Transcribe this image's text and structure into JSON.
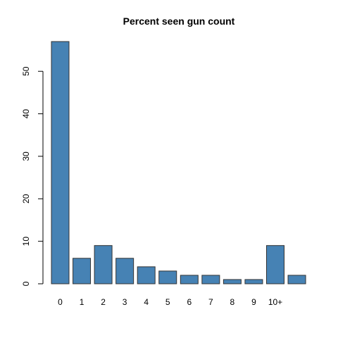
{
  "chart_data": {
    "type": "bar",
    "title": "Percent seen gun count",
    "xlabel": "",
    "ylabel": "",
    "categories": [
      "0",
      "1",
      "2",
      "3",
      "4",
      "5",
      "6",
      "7",
      "8",
      "9",
      "10+",
      ""
    ],
    "values": [
      57,
      6,
      9,
      6,
      4,
      3,
      2,
      2,
      1,
      1,
      9,
      2
    ],
    "ylim": [
      0,
      57
    ],
    "yticks": [
      0,
      10,
      20,
      30,
      40,
      50
    ],
    "grid": false,
    "bar_color": "#4682B4",
    "bar_border_color": "#333333"
  }
}
